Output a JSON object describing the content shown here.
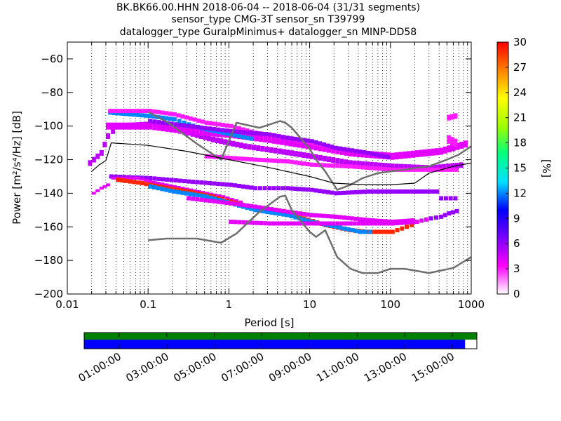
{
  "title_lines": [
    "BK.BK66.00.HHN   2018-06-04 -- 2018-06-04  (31/31 segments)",
    "sensor_type CMG-3T sensor_sn T39799",
    "datalogger_type GuralpMinimus+ datalogger_sn MINP-DD58"
  ],
  "chart_data": {
    "type": "heatmap",
    "xlabel": "Period [s]",
    "ylabel": "Power [m²/s⁴/Hz] [dB]",
    "xscale": "log",
    "xlim": [
      0.01,
      1000
    ],
    "ylim": [
      -200,
      -50
    ],
    "x_ticks": [
      {
        "value": 0.01,
        "label": "0.01"
      },
      {
        "value": 0.1,
        "label": "0.1"
      },
      {
        "value": 1,
        "label": "1"
      },
      {
        "value": 10,
        "label": "10"
      },
      {
        "value": 100,
        "label": "100"
      },
      {
        "value": 1000,
        "label": "1000"
      }
    ],
    "y_ticks": [
      {
        "value": -60,
        "label": "−60"
      },
      {
        "value": -80,
        "label": "−80"
      },
      {
        "value": -100,
        "label": "−100"
      },
      {
        "value": -120,
        "label": "−120"
      },
      {
        "value": -140,
        "label": "−140"
      },
      {
        "value": -160,
        "label": "−160"
      },
      {
        "value": -180,
        "label": "−180"
      },
      {
        "value": -200,
        "label": "−200"
      }
    ],
    "grid": "dotted vertical",
    "colorbar": {
      "label": "[%]",
      "range": [
        0,
        30
      ],
      "ticks": [
        "0",
        "3",
        "6",
        "9",
        "12",
        "15",
        "18",
        "21",
        "24",
        "27",
        "30"
      ],
      "colormap": [
        "#ffffff",
        "#ff00ff",
        "#7a00ff",
        "#0000ff",
        "#00e0ff",
        "#00ff80",
        "#a0ff00",
        "#ffff00",
        "#ff8000",
        "#ff0000"
      ]
    },
    "noise_models": [
      {
        "role": "high",
        "points": [
          [
            0.1,
            -91.5
          ],
          [
            0.17,
            -97.4
          ],
          [
            0.4,
            -110.5
          ],
          [
            0.8,
            -120
          ],
          [
            1.24,
            -98
          ],
          [
            2.4,
            -101
          ],
          [
            4.3,
            -97
          ],
          [
            5.0,
            -98
          ],
          [
            6.0,
            -101
          ],
          [
            10,
            -113.5
          ],
          [
            12,
            -120
          ],
          [
            15.6,
            -127
          ],
          [
            21.9,
            -138
          ],
          [
            32,
            -135
          ],
          [
            45,
            -131
          ],
          [
            70,
            -128
          ],
          [
            100,
            -127
          ],
          [
            150,
            -126
          ],
          [
            200,
            -125
          ],
          [
            300,
            -124
          ],
          [
            500,
            -120
          ],
          [
            700,
            -117
          ],
          [
            1000,
            -112
          ]
        ]
      },
      {
        "role": "low",
        "points": [
          [
            0.1,
            -168
          ],
          [
            0.17,
            -167
          ],
          [
            0.4,
            -167
          ],
          [
            0.8,
            -169.5
          ],
          [
            1.24,
            -164
          ],
          [
            2.4,
            -151
          ],
          [
            4.3,
            -142
          ],
          [
            5.0,
            -141.5
          ],
          [
            6.0,
            -150
          ],
          [
            10,
            -163
          ],
          [
            12,
            -166
          ],
          [
            15.6,
            -162
          ],
          [
            21.9,
            -178
          ],
          [
            32,
            -185
          ],
          [
            45,
            -187.5
          ],
          [
            70,
            -187.5
          ],
          [
            100,
            -185
          ],
          [
            150,
            -185
          ],
          [
            300,
            -187.5
          ],
          [
            600,
            -184.5
          ],
          [
            1000,
            -178
          ]
        ]
      }
    ],
    "mode_curve": [
      [
        0.02,
        -127
      ],
      [
        0.025,
        -123
      ],
      [
        0.03,
        -120.5
      ],
      [
        0.035,
        -110
      ],
      [
        0.05,
        -110.5
      ],
      [
        0.1,
        -111.5
      ],
      [
        0.3,
        -115
      ],
      [
        1,
        -120
      ],
      [
        3,
        -124.5
      ],
      [
        10,
        -130
      ],
      [
        20,
        -134
      ],
      [
        50,
        -135
      ],
      [
        100,
        -135
      ],
      [
        200,
        -134
      ],
      [
        300,
        -128
      ],
      [
        600,
        -124
      ],
      [
        1000,
        -122
      ]
    ],
    "density_bands": [
      {
        "pct": 5,
        "thickness": 4,
        "points": [
          [
            0.018,
            -122
          ],
          [
            0.025,
            -116
          ],
          [
            0.03,
            -106
          ],
          [
            0.04,
            -100
          ],
          [
            0.1,
            -99
          ],
          [
            0.3,
            -104
          ],
          [
            0.6,
            -108
          ],
          [
            1.5,
            -112
          ],
          [
            4,
            -115
          ],
          [
            10,
            -118
          ],
          [
            30,
            -122
          ],
          [
            100,
            -124
          ],
          [
            300,
            -125
          ],
          [
            800,
            -123
          ]
        ]
      },
      {
        "pct": 4,
        "thickness": 5,
        "points": [
          [
            0.03,
            -100
          ],
          [
            0.1,
            -100
          ],
          [
            0.3,
            -103
          ],
          [
            1,
            -105
          ],
          [
            3,
            -108
          ],
          [
            10,
            -112
          ],
          [
            30,
            -116
          ],
          [
            100,
            -118
          ],
          [
            400,
            -115
          ],
          [
            900,
            -110
          ]
        ]
      },
      {
        "pct": 12,
        "thickness": 3,
        "points": [
          [
            0.032,
            -92
          ],
          [
            0.1,
            -94
          ],
          [
            0.2,
            -96
          ],
          [
            0.3,
            -99
          ],
          [
            0.5,
            -102
          ],
          [
            1,
            -105
          ],
          [
            2,
            -108
          ]
        ]
      },
      {
        "pct": 3,
        "thickness": 3,
        "points": [
          [
            0.032,
            -91
          ],
          [
            0.1,
            -91
          ],
          [
            0.2,
            -93
          ],
          [
            0.5,
            -98
          ],
          [
            1,
            -100
          ],
          [
            2,
            -104
          ],
          [
            5,
            -107
          ],
          [
            10,
            -110
          ],
          [
            20,
            -113
          ]
        ]
      },
      {
        "pct": 6,
        "thickness": 3,
        "points": [
          [
            0.1,
            -97
          ],
          [
            0.3,
            -100
          ],
          [
            1,
            -103
          ],
          [
            3,
            -105
          ],
          [
            5,
            -107
          ],
          [
            10,
            -109
          ],
          [
            20,
            -113
          ],
          [
            50,
            -116
          ],
          [
            100,
            -119
          ]
        ]
      },
      {
        "pct": 3,
        "thickness": 3,
        "points": [
          [
            0.5,
            -118
          ],
          [
            2,
            -120
          ],
          [
            5,
            -121
          ],
          [
            10,
            -123
          ],
          [
            30,
            -124
          ],
          [
            100,
            -126
          ],
          [
            300,
            -126
          ],
          [
            700,
            -126
          ]
        ]
      },
      {
        "pct": 6,
        "thickness": 3,
        "points": [
          [
            0.033,
            -130
          ],
          [
            0.1,
            -131
          ],
          [
            0.3,
            -133
          ],
          [
            1,
            -135
          ],
          [
            2,
            -137
          ],
          [
            3,
            -137
          ],
          [
            5,
            -137
          ],
          [
            10,
            -138
          ],
          [
            20,
            -140
          ],
          [
            50,
            -139
          ],
          [
            100,
            -139
          ],
          [
            200,
            -139
          ],
          [
            400,
            -139
          ]
        ]
      },
      {
        "pct": 4,
        "thickness": 2,
        "points": [
          [
            0.02,
            -140
          ],
          [
            0.025,
            -137
          ],
          [
            0.03,
            -135
          ],
          [
            0.035,
            -131
          ],
          [
            0.05,
            -131
          ],
          [
            0.07,
            -131
          ],
          [
            0.1,
            -133
          ],
          [
            0.2,
            -136
          ],
          [
            0.4,
            -139
          ],
          [
            0.8,
            -142
          ],
          [
            1.5,
            -146
          ]
        ]
      },
      {
        "pct": 29,
        "thickness": 3,
        "points": [
          [
            0.04,
            -132
          ],
          [
            0.08,
            -134
          ],
          [
            0.1,
            -135
          ],
          [
            0.3,
            -139
          ],
          [
            0.6,
            -142
          ],
          [
            1,
            -145
          ],
          [
            2,
            -149
          ],
          [
            4,
            -152
          ],
          [
            8,
            -155
          ],
          [
            15,
            -159
          ],
          [
            30,
            -162
          ],
          [
            50,
            -163
          ],
          [
            100,
            -163
          ],
          [
            150,
            -160
          ],
          [
            200,
            -158
          ]
        ]
      },
      {
        "pct": 12,
        "thickness": 3,
        "points": [
          [
            0.1,
            -136
          ],
          [
            0.2,
            -139
          ],
          [
            0.5,
            -142
          ],
          [
            1,
            -146
          ],
          [
            2,
            -150
          ],
          [
            5,
            -153
          ],
          [
            10,
            -157
          ],
          [
            20,
            -160
          ],
          [
            40,
            -163
          ],
          [
            60,
            -163
          ]
        ]
      },
      {
        "pct": 4,
        "thickness": 3,
        "points": [
          [
            0.3,
            -143
          ],
          [
            1,
            -146
          ],
          [
            2,
            -148
          ],
          [
            5,
            -151
          ],
          [
            10,
            -153
          ],
          [
            20,
            -154
          ],
          [
            50,
            -156
          ],
          [
            100,
            -157
          ],
          [
            200,
            -156
          ]
        ]
      },
      {
        "pct": 4,
        "thickness": 3,
        "points": [
          [
            1,
            -157
          ],
          [
            3,
            -158
          ],
          [
            10,
            -158
          ],
          [
            30,
            -158
          ],
          [
            100,
            -158
          ],
          [
            200,
            -157
          ],
          [
            300,
            -155
          ]
        ]
      },
      {
        "pct": 6,
        "thickness": 3,
        "points": [
          [
            300,
            -155
          ],
          [
            400,
            -154
          ],
          [
            500,
            -152
          ],
          [
            700,
            -150
          ]
        ]
      },
      {
        "pct": 6,
        "thickness": 3,
        "points": [
          [
            400,
            -143
          ],
          [
            600,
            -143
          ],
          [
            700,
            -143
          ]
        ]
      },
      {
        "pct": 3,
        "thickness": 6,
        "points": [
          [
            500,
            -108
          ],
          [
            600,
            -110
          ],
          [
            700,
            -112
          ]
        ]
      },
      {
        "pct": 3,
        "thickness": 4,
        "points": [
          [
            500,
            -95
          ],
          [
            600,
            -94
          ],
          [
            700,
            -93
          ]
        ]
      }
    ],
    "timeline": {
      "labels": [
        "01:00:00",
        "03:00:00",
        "05:00:00",
        "07:00:00",
        "09:00:00",
        "11:00:00",
        "13:00:00",
        "15:00:00"
      ],
      "top_bar_color": "#008000",
      "bottom_bar_color": "#0000ff",
      "coverage_fraction": 0.97
    }
  }
}
